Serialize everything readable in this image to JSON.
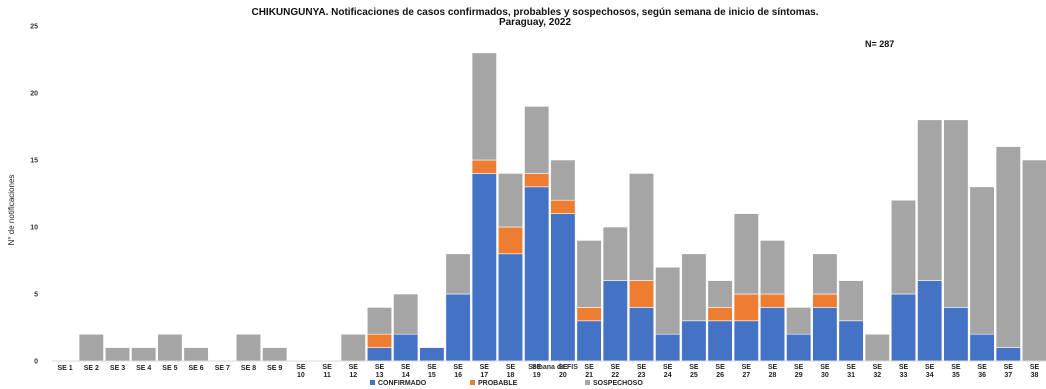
{
  "chart_data": {
    "type": "bar",
    "stacked": true,
    "title": "CHIKUNGUNYA. Notificaciones de casos confirmados, probables y sospechosos, según semana de inicio de síntomas.",
    "subtitle": "Paraguay, 2022",
    "annotation": "N= 287",
    "xlabel": "Semana de FIS",
    "ylabel": "N° de notificaciones",
    "ylim": [
      0,
      25
    ],
    "yticks": [
      "0",
      "5",
      "10",
      "15",
      "20",
      "25"
    ],
    "grid": false,
    "legend": "bottom",
    "categories": [
      "SE 1",
      "SE 2",
      "SE 3",
      "SE 4",
      "SE 5",
      "SE 6",
      "SE 7",
      "SE 8",
      "SE 9",
      "SE 10",
      "SE 11",
      "SE 12",
      "SE 13",
      "SE 14",
      "SE 15",
      "SE 16",
      "SE 17",
      "SE 18",
      "SE 19",
      "SE 20",
      "SE 21",
      "SE 22",
      "SE 23",
      "SE 24",
      "SE 25",
      "SE 26",
      "SE 27",
      "SE 28",
      "SE 29",
      "SE 30",
      "SE 31",
      "SE 32",
      "SE 33",
      "SE 34",
      "SE 35",
      "SE 36",
      "SE 37",
      "SE 38"
    ],
    "series": [
      {
        "name": "CONFIRMADO",
        "color": "#4472C4",
        "values": [
          0,
          0,
          0,
          0,
          0,
          0,
          0,
          0,
          0,
          0,
          0,
          0,
          1,
          2,
          1,
          5,
          14,
          8,
          13,
          11,
          3,
          6,
          4,
          2,
          3,
          3,
          3,
          4,
          2,
          4,
          3,
          0,
          5,
          6,
          4,
          2,
          1,
          0
        ]
      },
      {
        "name": "PROBABLE",
        "color": "#ED7D31",
        "values": [
          0,
          0,
          0,
          0,
          0,
          0,
          0,
          0,
          0,
          0,
          0,
          0,
          1,
          0,
          0,
          0,
          1,
          2,
          1,
          1,
          1,
          0,
          2,
          0,
          0,
          1,
          2,
          1,
          0,
          1,
          0,
          0,
          0,
          0,
          0,
          0,
          0,
          0
        ]
      },
      {
        "name": "SOSPECHOSO",
        "color": "#A5A5A5",
        "values": [
          0,
          2,
          1,
          1,
          2,
          1,
          0,
          2,
          1,
          0,
          0,
          2,
          2,
          3,
          0,
          3,
          8,
          4,
          5,
          3,
          5,
          4,
          8,
          5,
          5,
          2,
          6,
          4,
          2,
          3,
          3,
          2,
          7,
          12,
          14,
          11,
          15,
          15
        ]
      }
    ]
  }
}
